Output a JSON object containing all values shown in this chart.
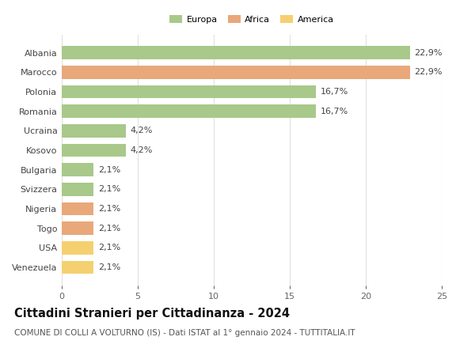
{
  "categories": [
    "Albania",
    "Marocco",
    "Polonia",
    "Romania",
    "Ucraina",
    "Kosovo",
    "Bulgaria",
    "Svizzera",
    "Nigeria",
    "Togo",
    "USA",
    "Venezuela"
  ],
  "values": [
    22.9,
    22.9,
    16.7,
    16.7,
    4.2,
    4.2,
    2.1,
    2.1,
    2.1,
    2.1,
    2.1,
    2.1
  ],
  "labels": [
    "22,9%",
    "22,9%",
    "16,7%",
    "16,7%",
    "4,2%",
    "4,2%",
    "2,1%",
    "2,1%",
    "2,1%",
    "2,1%",
    "2,1%",
    "2,1%"
  ],
  "colors": [
    "#a8c98a",
    "#e8a87a",
    "#a8c98a",
    "#a8c98a",
    "#a8c98a",
    "#a8c98a",
    "#a8c98a",
    "#a8c98a",
    "#e8a87a",
    "#e8a87a",
    "#f5d070",
    "#f5d070"
  ],
  "legend_labels": [
    "Europa",
    "Africa",
    "America"
  ],
  "legend_colors": [
    "#a8c98a",
    "#e8a87a",
    "#f5d070"
  ],
  "xlim": [
    0,
    25
  ],
  "xticks": [
    0,
    5,
    10,
    15,
    20,
    25
  ],
  "title": "Cittadini Stranieri per Cittadinanza - 2024",
  "subtitle": "COMUNE DI COLLI A VOLTURNO (IS) - Dati ISTAT al 1° gennaio 2024 - TUTTITALIA.IT",
  "background_color": "#ffffff",
  "grid_color": "#e0e0e0",
  "bar_height": 0.68,
  "label_fontsize": 8.0,
  "title_fontsize": 10.5,
  "subtitle_fontsize": 7.5
}
